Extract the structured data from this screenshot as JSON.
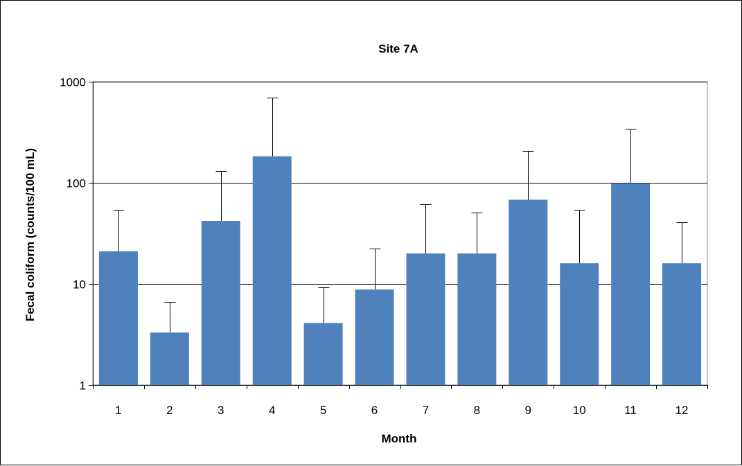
{
  "chart_data": {
    "type": "bar",
    "title": "Site 7A",
    "xlabel": "Month",
    "ylabel": "Fecal coliform (counts/100  mL)",
    "y_scale": "log",
    "ylim": [
      1,
      1000
    ],
    "y_ticks": [
      "1",
      "10",
      "100",
      "1000"
    ],
    "y_tick_values": [
      1,
      10,
      100,
      1000
    ],
    "categories": [
      "1",
      "2",
      "3",
      "4",
      "5",
      "6",
      "7",
      "8",
      "9",
      "10",
      "11",
      "12"
    ],
    "values": [
      21,
      3.3,
      42,
      183,
      4.1,
      8.8,
      20,
      20,
      68,
      16,
      99,
      16
    ],
    "error_upper": [
      54,
      6.6,
      130,
      700,
      9.2,
      22.5,
      61,
      51,
      207,
      54,
      340,
      41
    ],
    "grid": "horizontal major gridlines",
    "legend": "none",
    "colors": {
      "bar": "#4f81bd",
      "error_bar": "#000000",
      "gridline": "#000000",
      "plot_border": "#868686"
    }
  }
}
